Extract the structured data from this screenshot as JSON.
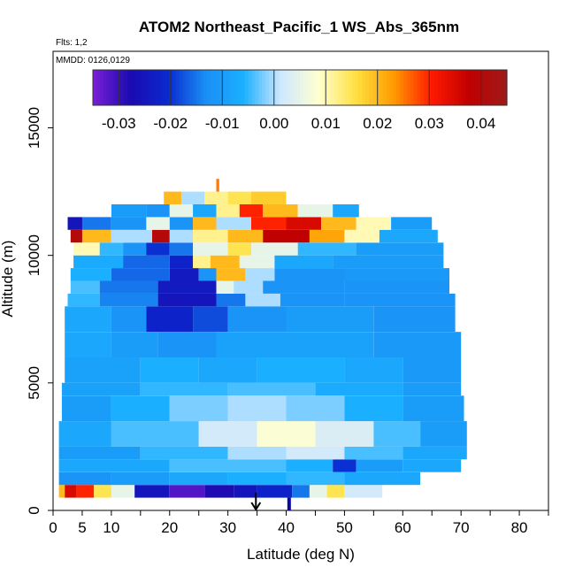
{
  "chart_data": {
    "type": "heatmap",
    "title": "ATOM2 Northeast_Pacific_1 WS_Abs_365nm",
    "flights_label": "Flts: 1,2",
    "dates_label": "MMDD: 0126,0129",
    "xlabel": "Latitude (deg N)",
    "ylabel": "Altitude (m)",
    "xlim": [
      0,
      85
    ],
    "ylim": [
      0,
      18000
    ],
    "x_ticks": [
      0,
      5,
      10,
      20,
      30,
      40,
      50,
      60,
      70,
      80
    ],
    "y_ticks": [
      0,
      5000,
      10000,
      15000
    ],
    "colorbar": {
      "range": [
        -0.035,
        0.045
      ],
      "ticks": [
        "-0.03",
        "-0.02",
        "-0.01",
        "0.00",
        "0.01",
        "0.02",
        "0.03",
        "0.04"
      ],
      "tick_values": [
        -0.03,
        -0.02,
        -0.01,
        0.0,
        0.01,
        0.02,
        0.03,
        0.04
      ],
      "colors": [
        "#7a1fd6",
        "#1a0ab0",
        "#0a2ad0",
        "#1a8ff5",
        "#1ab0ff",
        "#cfe8ff",
        "#ffffd0",
        "#ffe040",
        "#ff9a00",
        "#ff1a00",
        "#c00000",
        "#9e1a1a"
      ]
    },
    "layers": [
      {
        "alt": [
          500,
          1000
        ],
        "lat": [
          1,
          56.5
        ],
        "segments": [
          [
            1,
            2,
            0.02
          ],
          [
            2,
            4,
            0.035
          ],
          [
            4,
            7,
            0.03
          ],
          [
            7,
            10,
            0.015
          ],
          [
            10,
            14,
            0.005
          ],
          [
            14,
            20,
            -0.025
          ],
          [
            20,
            26,
            -0.032
          ],
          [
            26,
            31,
            -0.028
          ],
          [
            31,
            35,
            -0.025
          ],
          [
            35,
            41,
            -0.022
          ],
          [
            41,
            44,
            -0.015
          ],
          [
            44,
            47,
            0.005
          ],
          [
            47,
            50,
            0.015
          ],
          [
            50,
            56.5,
            0.002
          ]
        ]
      },
      {
        "alt": [
          1000,
          1500
        ],
        "lat": [
          1,
          63
        ],
        "segments": [
          [
            1,
            10,
            -0.012
          ],
          [
            10,
            20,
            -0.01
          ],
          [
            20,
            30,
            -0.008
          ],
          [
            30,
            40,
            -0.006
          ],
          [
            40,
            50,
            -0.005
          ],
          [
            50,
            63,
            -0.008
          ]
        ]
      },
      {
        "alt": [
          1500,
          2000
        ],
        "lat": [
          1,
          70
        ],
        "segments": [
          [
            1,
            20,
            -0.008
          ],
          [
            20,
            40,
            -0.004
          ],
          [
            40,
            48,
            -0.006
          ],
          [
            48,
            52,
            -0.02
          ],
          [
            52,
            60,
            -0.01
          ],
          [
            60,
            70,
            -0.008
          ]
        ]
      },
      {
        "alt": [
          2000,
          2500
        ],
        "lat": [
          1,
          71
        ],
        "segments": [
          [
            1,
            15,
            -0.01
          ],
          [
            15,
            30,
            -0.005
          ],
          [
            30,
            40,
            0.0
          ],
          [
            40,
            50,
            0.002
          ],
          [
            50,
            60,
            -0.004
          ],
          [
            60,
            71,
            -0.008
          ]
        ]
      },
      {
        "alt": [
          2500,
          3500
        ],
        "lat": [
          1,
          71
        ],
        "segments": [
          [
            1,
            10,
            -0.008
          ],
          [
            10,
            25,
            -0.004
          ],
          [
            25,
            35,
            0.002
          ],
          [
            35,
            45,
            0.008
          ],
          [
            45,
            55,
            0.003
          ],
          [
            55,
            63,
            -0.004
          ],
          [
            63,
            71,
            -0.01
          ]
        ]
      },
      {
        "alt": [
          3500,
          4500
        ],
        "lat": [
          1.5,
          70.5
        ],
        "segments": [
          [
            1.5,
            10,
            -0.01
          ],
          [
            10,
            20,
            -0.006
          ],
          [
            20,
            30,
            -0.002
          ],
          [
            30,
            40,
            0.0
          ],
          [
            40,
            50,
            -0.002
          ],
          [
            50,
            60,
            -0.006
          ],
          [
            60,
            70.5,
            -0.01
          ]
        ]
      },
      {
        "alt": [
          4500,
          5000
        ],
        "lat": [
          1.5,
          70
        ],
        "segments": [
          [
            1.5,
            15,
            -0.009
          ],
          [
            15,
            30,
            -0.005
          ],
          [
            30,
            45,
            -0.004
          ],
          [
            45,
            60,
            -0.007
          ],
          [
            60,
            70,
            -0.01
          ]
        ]
      },
      {
        "alt": [
          5000,
          6000
        ],
        "lat": [
          2,
          70
        ],
        "segments": [
          [
            2,
            15,
            -0.009
          ],
          [
            15,
            25,
            -0.006
          ],
          [
            25,
            35,
            -0.008
          ],
          [
            35,
            50,
            -0.006
          ],
          [
            50,
            60,
            -0.008
          ],
          [
            60,
            70,
            -0.011
          ]
        ]
      },
      {
        "alt": [
          6000,
          7000
        ],
        "lat": [
          2,
          70
        ],
        "segments": [
          [
            2,
            10,
            -0.008
          ],
          [
            10,
            18,
            -0.01
          ],
          [
            18,
            28,
            -0.012
          ],
          [
            28,
            40,
            -0.009
          ],
          [
            40,
            55,
            -0.009
          ],
          [
            55,
            70,
            -0.011
          ]
        ]
      },
      {
        "alt": [
          7000,
          8000
        ],
        "lat": [
          2,
          69
        ],
        "segments": [
          [
            2,
            10,
            -0.008
          ],
          [
            10,
            16,
            -0.012
          ],
          [
            16,
            24,
            -0.022
          ],
          [
            24,
            30,
            -0.018
          ],
          [
            30,
            40,
            -0.012
          ],
          [
            40,
            55,
            -0.01
          ],
          [
            55,
            69,
            -0.012
          ]
        ]
      },
      {
        "alt": [
          8000,
          8500
        ],
        "lat": [
          2.5,
          69
        ],
        "segments": [
          [
            2.5,
            8,
            -0.005
          ],
          [
            8,
            18,
            -0.014
          ],
          [
            18,
            28,
            -0.025
          ],
          [
            28,
            33,
            -0.015
          ],
          [
            33,
            39,
            0.0
          ],
          [
            39,
            50,
            -0.012
          ],
          [
            50,
            69,
            -0.012
          ]
        ]
      },
      {
        "alt": [
          8500,
          9000
        ],
        "lat": [
          3,
          68
        ],
        "segments": [
          [
            3,
            8,
            -0.004
          ],
          [
            8,
            18,
            -0.015
          ],
          [
            18,
            28,
            -0.024
          ],
          [
            28,
            31,
            0.005
          ],
          [
            31,
            36,
            0.0
          ],
          [
            36,
            50,
            -0.012
          ],
          [
            50,
            68,
            -0.012
          ]
        ]
      },
      {
        "alt": [
          9000,
          9500
        ],
        "lat": [
          3,
          68
        ],
        "segments": [
          [
            3,
            10,
            -0.006
          ],
          [
            10,
            20,
            -0.016
          ],
          [
            20,
            25,
            -0.024
          ],
          [
            25,
            28,
            -0.012
          ],
          [
            28,
            33,
            0.02
          ],
          [
            33,
            38,
            0.0
          ],
          [
            38,
            50,
            -0.012
          ],
          [
            50,
            68,
            -0.011
          ]
        ]
      },
      {
        "alt": [
          9500,
          10000
        ],
        "lat": [
          3.5,
          67
        ],
        "segments": [
          [
            3.5,
            12,
            -0.007
          ],
          [
            12,
            20,
            -0.016
          ],
          [
            20,
            24,
            -0.022
          ],
          [
            24,
            27,
            0.012
          ],
          [
            27,
            32,
            0.02
          ],
          [
            32,
            38,
            0.005
          ],
          [
            38,
            48,
            -0.008
          ],
          [
            48,
            67,
            -0.01
          ]
        ]
      },
      {
        "alt": [
          10000,
          10500
        ],
        "lat": [
          3.5,
          67
        ],
        "segments": [
          [
            3.5,
            8,
            0.01
          ],
          [
            8,
            12,
            -0.005
          ],
          [
            12,
            16,
            -0.012
          ],
          [
            16,
            20,
            -0.02
          ],
          [
            20,
            24,
            -0.015
          ],
          [
            24,
            30,
            0.005
          ],
          [
            30,
            34,
            0.015
          ],
          [
            34,
            42,
            0.005
          ],
          [
            42,
            52,
            -0.005
          ],
          [
            52,
            67,
            -0.01
          ]
        ]
      },
      {
        "alt": [
          10500,
          11000
        ],
        "lat": [
          3,
          66
        ],
        "segments": [
          [
            3,
            5,
            0.04
          ],
          [
            5,
            10,
            0.02
          ],
          [
            10,
            17,
            0.0
          ],
          [
            17,
            20,
            0.04
          ],
          [
            20,
            24,
            0.0
          ],
          [
            24,
            30,
            0.012
          ],
          [
            30,
            36,
            0.02
          ],
          [
            36,
            44,
            0.038
          ],
          [
            44,
            50,
            0.022
          ],
          [
            50,
            56,
            0.01
          ],
          [
            56,
            66,
            -0.008
          ]
        ]
      },
      {
        "alt": [
          11000,
          11500
        ],
        "lat": [
          2.5,
          65
        ],
        "segments": [
          [
            2.5,
            5,
            -0.025
          ],
          [
            5,
            10,
            -0.015
          ],
          [
            10,
            16,
            -0.012
          ],
          [
            16,
            20,
            0.005
          ],
          [
            20,
            24,
            -0.012
          ],
          [
            24,
            28,
            0.02
          ],
          [
            28,
            34,
            0.0
          ],
          [
            34,
            40,
            0.03
          ],
          [
            40,
            46,
            0.035
          ],
          [
            46,
            52,
            0.02
          ],
          [
            52,
            58,
            0.01
          ],
          [
            58,
            65,
            -0.01
          ]
        ]
      },
      {
        "alt": [
          11500,
          12000
        ],
        "lat": [
          10,
          52.5
        ],
        "segments": [
          [
            10,
            16,
            -0.01
          ],
          [
            16,
            20,
            -0.012
          ],
          [
            20,
            24,
            0.005
          ],
          [
            24,
            28,
            -0.008
          ],
          [
            28,
            32,
            0.012
          ],
          [
            32,
            36,
            0.03
          ],
          [
            36,
            42,
            0.02
          ],
          [
            42,
            48,
            0.005
          ],
          [
            48,
            52.5,
            -0.008
          ]
        ]
      },
      {
        "alt": [
          12000,
          12500
        ],
        "lat": [
          19,
          40
        ],
        "segments": [
          [
            19,
            22,
            0.02
          ],
          [
            22,
            26,
            0.0
          ],
          [
            26,
            30,
            0.012
          ],
          [
            30,
            34,
            0.015
          ],
          [
            34,
            40,
            0.018
          ]
        ]
      },
      {
        "alt": [
          12500,
          13000
        ],
        "lat": [
          28,
          28.5
        ],
        "segments": [
          [
            28,
            28.5,
            0.025
          ]
        ]
      }
    ],
    "markers": [
      {
        "lat": 34.8,
        "type": "arrow-down",
        "alt_from": 700,
        "alt_to": 0
      },
      {
        "lat": 40.5,
        "type": "bar",
        "alt_from": 0,
        "alt_to": 500
      }
    ]
  }
}
